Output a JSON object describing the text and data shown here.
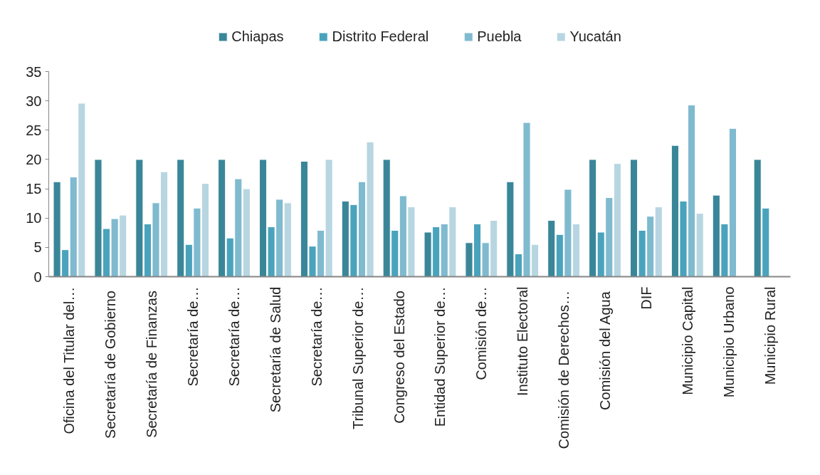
{
  "chart_data": {
    "type": "bar",
    "categories": [
      "Oficina del Titular del…",
      "Secretaría de  Gobierno",
      "Secretaría de  Finanzas",
      "Secretaría de…",
      "Secretaría de…",
      "Secretaría de Salud",
      "Secretaría de…",
      "Tribunal Superior de…",
      "Congreso del  Estado",
      "Entidad Superior de…",
      "Comisión de…",
      "Instituto Electoral",
      "Comisión de  Derechos…",
      "Comisión del  Agua",
      "DIF",
      "Municipio Capital",
      "Municipio Urbano",
      "Municipio Rural"
    ],
    "series": [
      {
        "name": "Chiapas",
        "color": "#3a8699",
        "values": [
          16.2,
          20,
          20,
          20,
          20,
          20,
          19.7,
          12.9,
          20,
          7.6,
          5.8,
          16.2,
          9.6,
          20,
          20,
          22.4,
          13.9,
          20
        ]
      },
      {
        "name": "Distrito Federal",
        "color": "#4aa3bc",
        "values": [
          4.6,
          8.2,
          9.0,
          5.5,
          6.6,
          8.5,
          5.2,
          12.3,
          7.9,
          8.5,
          9.0,
          3.9,
          7.2,
          7.6,
          7.9,
          12.9,
          9.0,
          11.7
        ]
      },
      {
        "name": "Puebla",
        "color": "#7fbacf",
        "values": [
          17.0,
          9.9,
          12.6,
          11.7,
          16.7,
          13.2,
          7.9,
          16.2,
          13.8,
          9.0,
          5.8,
          26.3,
          14.9,
          13.5,
          10.3,
          29.3,
          25.3,
          null
        ]
      },
      {
        "name": "Yucatán",
        "color": "#b7d6e1",
        "values": [
          29.6,
          10.5,
          17.9,
          15.9,
          15.0,
          12.6,
          20,
          23.0,
          11.9,
          11.9,
          9.6,
          5.5,
          9.0,
          19.3,
          11.9,
          10.8,
          null,
          null
        ]
      }
    ],
    "ylim": [
      0,
      35
    ],
    "yticks": [
      0,
      5,
      10,
      15,
      20,
      25,
      30,
      35
    ],
    "grid": false,
    "legend": "top"
  }
}
